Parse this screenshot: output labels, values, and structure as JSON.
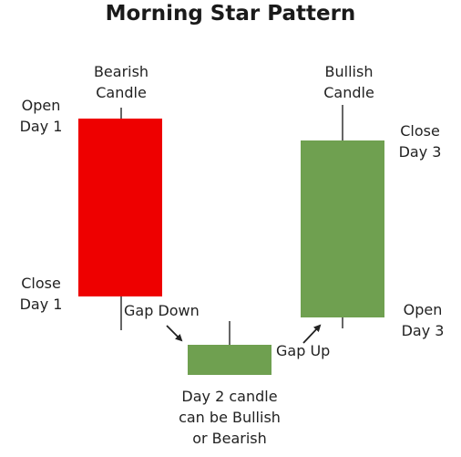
{
  "title": "Morning Star Pattern",
  "candles": {
    "day1": {
      "label_line1": "Bearish",
      "label_line2": "Candle",
      "open_line1": "Open",
      "open_line2": "Day 1",
      "close_line1": "Close",
      "close_line2": "Day 1"
    },
    "day2": {
      "note_line1": "Day 2 candle",
      "note_line2": "can be Bullish",
      "note_line3": "or Bearish"
    },
    "day3": {
      "label_line1": "Bullish",
      "label_line2": "Candle",
      "close_line1": "Close",
      "close_line2": "Day 3",
      "open_line1": "Open",
      "open_line2": "Day 3"
    }
  },
  "annotations": {
    "gap_down": "Gap Down",
    "gap_up": "Gap Up"
  },
  "colors": {
    "bearish": "#ee0000",
    "neutral": "#6fa050",
    "bullish": "#6fa050",
    "wick": "#333333",
    "arrow": "#222222"
  }
}
